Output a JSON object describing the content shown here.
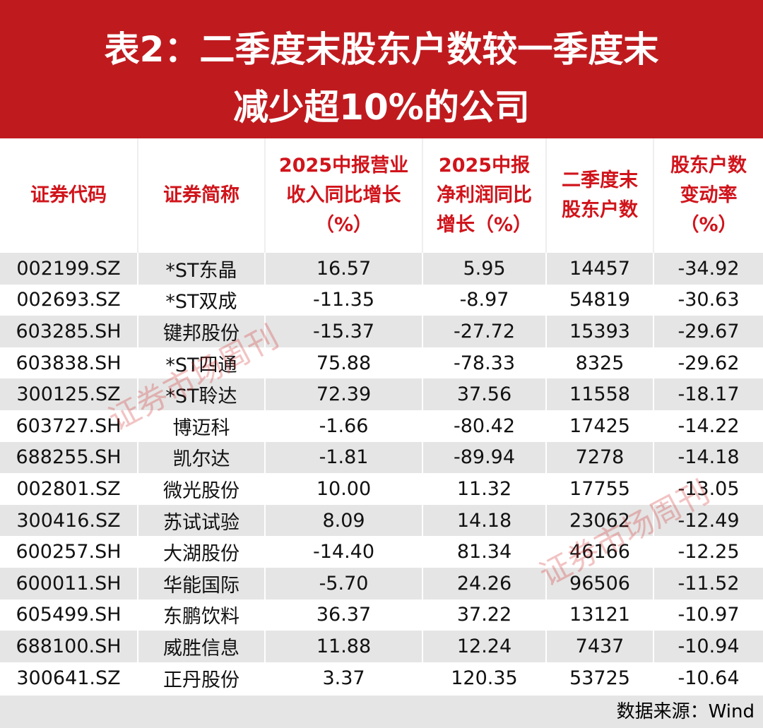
{
  "header": {
    "title": [
      "表2：二季度末股东户数较一季度末",
      "减少超10%的公司"
    ]
  },
  "table": {
    "headers": [
      [
        "证券代码"
      ],
      [
        "证券简称"
      ],
      [
        "2025中报营业",
        "收入同比增长",
        "（%）"
      ],
      [
        "2025中报",
        "净利润同比",
        "增长（%）"
      ],
      [
        "二季度末",
        "股东户数"
      ],
      [
        "股东户数",
        "变动率",
        "（%）"
      ]
    ],
    "rows": [
      [
        "002199.SZ",
        "*ST东晶",
        "16.57",
        "5.95",
        "14457",
        "-34.92"
      ],
      [
        "002693.SZ",
        "*ST双成",
        "-11.35",
        "-8.97",
        "54819",
        "-30.63"
      ],
      [
        "603285.SH",
        "键邦股份",
        "-15.37",
        "-27.72",
        "15393",
        "-29.67"
      ],
      [
        "603838.SH",
        "*ST四通",
        "75.88",
        "-78.33",
        "8325",
        "-29.62"
      ],
      [
        "300125.SZ",
        "*ST聆达",
        "72.39",
        "37.56",
        "11558",
        "-18.17"
      ],
      [
        "603727.SH",
        "博迈科",
        "-1.66",
        "-80.42",
        "17425",
        "-14.22"
      ],
      [
        "688255.SH",
        "凯尔达",
        "-1.81",
        "-89.94",
        "7278",
        "-14.18"
      ],
      [
        "002801.SZ",
        "微光股份",
        "10.00",
        "11.32",
        "17755",
        "-13.05"
      ],
      [
        "300416.SZ",
        "苏试试验",
        "8.09",
        "14.18",
        "23062",
        "-12.49"
      ],
      [
        "600257.SH",
        "大湖股份",
        "-14.40",
        "81.34",
        "46166",
        "-12.25"
      ],
      [
        "600011.SH",
        "华能国际",
        "-5.70",
        "24.26",
        "96506",
        "-11.52"
      ],
      [
        "605499.SH",
        "东鹏饮料",
        "36.37",
        "37.22",
        "13121",
        "-10.97"
      ],
      [
        "688100.SH",
        "威胜信息",
        "11.88",
        "12.24",
        "7437",
        "-10.94"
      ],
      [
        "300641.SZ",
        "正丹股份",
        "3.37",
        "120.35",
        "53725",
        "-10.64"
      ]
    ]
  },
  "footer": {
    "source": "数据来源：Wind"
  },
  "watermark": "证券市场周刊"
}
